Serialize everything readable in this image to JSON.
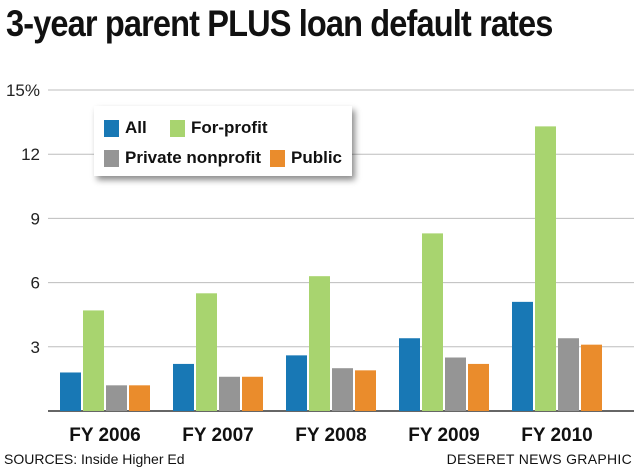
{
  "chart_data": {
    "type": "bar",
    "title": "3-year parent PLUS loan default rates",
    "categories": [
      "FY 2006",
      "FY 2007",
      "FY 2008",
      "FY 2009",
      "FY 2010"
    ],
    "series": [
      {
        "name": "All",
        "color": "#1878b5",
        "values": [
          1.8,
          2.2,
          2.6,
          3.4,
          5.1
        ]
      },
      {
        "name": "For-profit",
        "color": "#a8d46f",
        "values": [
          4.7,
          5.5,
          6.3,
          8.3,
          13.3
        ]
      },
      {
        "name": "Private nonprofit",
        "color": "#959595",
        "values": [
          1.2,
          1.6,
          2.0,
          2.5,
          3.4
        ]
      },
      {
        "name": "Public",
        "color": "#ea8c2c",
        "values": [
          1.2,
          1.6,
          1.9,
          2.2,
          3.1
        ]
      }
    ],
    "yticks": [
      "3",
      "6",
      "9",
      "12",
      "15%"
    ],
    "ytick_values": [
      3,
      6,
      9,
      12,
      15
    ],
    "ylim": [
      0,
      15
    ],
    "grid": true,
    "legend_position": "top-left"
  },
  "footer": {
    "source": "SOURCES: Inside Higher Ed",
    "credit": "DESERET NEWS GRAPHIC"
  }
}
